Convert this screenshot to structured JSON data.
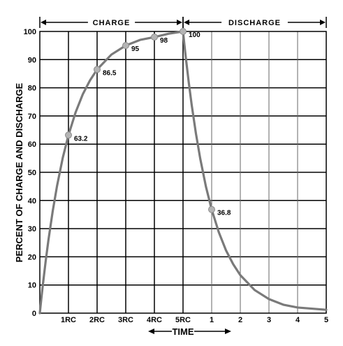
{
  "chart_data": {
    "type": "line",
    "ylabel": "PERCENT OF CHARGE AND DISCHARGE",
    "xlabel": "TIME",
    "ylim": [
      0,
      100
    ],
    "y_ticks": [
      "0",
      "10",
      "20",
      "30",
      "40",
      "50",
      "60",
      "70",
      "80",
      "90",
      "100"
    ],
    "x_ticks": [
      "1RC",
      "2RC",
      "3RC",
      "4RC",
      "5RC",
      "1",
      "2",
      "3",
      "4",
      "5"
    ],
    "segments": [
      {
        "label": "CHARGE",
        "x_range": [
          0,
          5
        ]
      },
      {
        "label": "DISCHARGE",
        "x_range": [
          5,
          10
        ]
      }
    ],
    "grid": true,
    "series": [
      {
        "points": [
          {
            "x": 0,
            "y": 0
          },
          {
            "x": 0.05,
            "y": 4.9
          },
          {
            "x": 0.1,
            "y": 9.5
          },
          {
            "x": 0.2,
            "y": 18.1
          },
          {
            "x": 0.3,
            "y": 25.9
          },
          {
            "x": 0.45,
            "y": 36.2
          },
          {
            "x": 0.6,
            "y": 45.1
          },
          {
            "x": 0.8,
            "y": 55.1
          },
          {
            "x": 1,
            "y": 63.2
          },
          {
            "x": 1.25,
            "y": 71.3
          },
          {
            "x": 1.5,
            "y": 77.7
          },
          {
            "x": 1.75,
            "y": 82.6
          },
          {
            "x": 2,
            "y": 86.5
          },
          {
            "x": 2.5,
            "y": 91.8
          },
          {
            "x": 3,
            "y": 95
          },
          {
            "x": 3.5,
            "y": 97
          },
          {
            "x": 4,
            "y": 98
          },
          {
            "x": 4.5,
            "y": 99.2
          },
          {
            "x": 5,
            "y": 100
          },
          {
            "x": 5.05,
            "y": 95.1
          },
          {
            "x": 5.1,
            "y": 90.5
          },
          {
            "x": 5.2,
            "y": 81.9
          },
          {
            "x": 5.3,
            "y": 74.1
          },
          {
            "x": 5.45,
            "y": 63.8
          },
          {
            "x": 5.6,
            "y": 54.9
          },
          {
            "x": 5.8,
            "y": 44.9
          },
          {
            "x": 6,
            "y": 36.8
          },
          {
            "x": 6.25,
            "y": 28.7
          },
          {
            "x": 6.5,
            "y": 22.3
          },
          {
            "x": 6.75,
            "y": 17.4
          },
          {
            "x": 7,
            "y": 13.5
          },
          {
            "x": 7.5,
            "y": 8.2
          },
          {
            "x": 8,
            "y": 5
          },
          {
            "x": 8.5,
            "y": 3
          },
          {
            "x": 9,
            "y": 2
          },
          {
            "x": 10,
            "y": 1.2
          }
        ]
      }
    ],
    "markers": [
      {
        "x": 1,
        "y": 63.2,
        "label": "63.2"
      },
      {
        "x": 2,
        "y": 86.5,
        "label": "86.5"
      },
      {
        "x": 3,
        "y": 95,
        "label": "95"
      },
      {
        "x": 4,
        "y": 98,
        "label": "98"
      },
      {
        "x": 5,
        "y": 100,
        "label": "100"
      },
      {
        "x": 6,
        "y": 36.8,
        "label": "36.8"
      }
    ]
  }
}
